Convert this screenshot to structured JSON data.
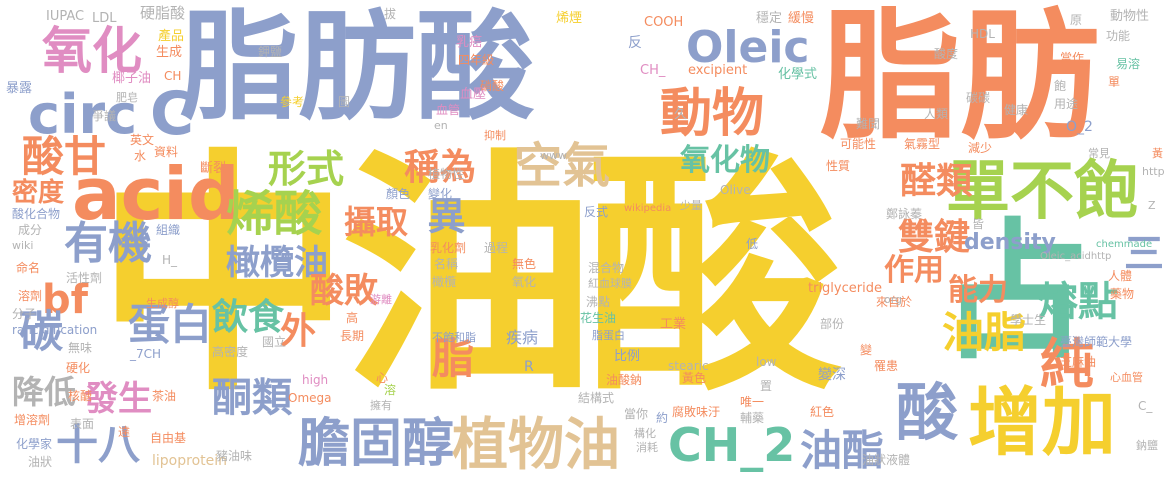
{
  "palette": {
    "yellow": "#f5cf2e",
    "blue": "#8d9fcb",
    "orange": "#f48c5f",
    "green": "#67c2a4",
    "pink": "#e08dc2",
    "lime": "#a6d24f",
    "tan": "#e2c394",
    "gray": "#b3b3b3"
  },
  "words": {
    "zhong_you_suan": "中油酸",
    "zhifang_suan": "脂肪酸",
    "zhifang": "脂肪",
    "zhan": "占",
    "acid": "acid",
    "yanghua": "氧化",
    "circ": "circ",
    "c": "C",
    "oleic": "Oleic",
    "dongwu": "動物",
    "danbubao": "單不飽",
    "zengjia": "增加",
    "suan": "酸",
    "dangu_chun": "膽固醇",
    "zhiwuyou": "植物油",
    "ch2": "CH_2",
    "youzhi": "油酯",
    "xi_suan": "烯酸",
    "xingshi": "形式",
    "kongqi": "空氣",
    "youji": "有機",
    "bf": "bf",
    "suangan": "酸甘",
    "midu": "密度",
    "tan_c": "碳",
    "jiangdi": "降低",
    "fasheng": "發生",
    "shiba": "十八",
    "tong_lei": "酮類",
    "danbai": "蛋白",
    "wai": "外",
    "yinshi": "飲食",
    "ganlanyou": "橄欖油",
    "sheqv": "攝取",
    "chengwei": "稱為",
    "yanghuawu": "氧化物",
    "quan_lei": "醛類",
    "shuangjian": "雙鍵",
    "density": "density",
    "zuoyong": "作用",
    "nengli": "能力",
    "yi": "異",
    "suanbai": "酸敗",
    "zhi": "脂",
    "youzhi2": "油脂",
    "rongdian": "熔點",
    "chun": "純",
    "san": "三",
    "yingzhi_suan": "硬脂酸",
    "iupac": "IUPAC",
    "ldl": "LDL",
    "ruan": "乳癌",
    "xiyan": "烯煙",
    "cooh": "COOH",
    "wending": "穩定",
    "huanman": "緩慢",
    "dongwuxing": "動物性",
    "gongneng": "功能",
    "yuan": "原",
    "sinianji": "四年級",
    "ch_": "CH_",
    "excipient": "excipient",
    "huaxueshi": "化學式",
    "chanpin": "產品",
    "shengcheng": "生成",
    "yezi_you": "椰子油",
    "feizao": "肥皂",
    "baolu": "暴露",
    "zhengyi": "爭議",
    "yingwen": "英文",
    "shui": "水",
    "ziliao": "資料",
    "duanliang": "斷裂",
    "jia_yan": "鉀鹽",
    "suandu": "酸度",
    "fan": "反",
    "xueya": "血壓",
    "xiaosuan": "硝酸",
    "xueguan": "血管",
    "en": "en",
    "yizhi": "抑制",
    "www": "www",
    "renlei": "人類",
    "jiankang": "健康",
    "nanwen": "難聞",
    "keneng": "可能性",
    "qiyang": "氣霧型",
    "jianshao": "減少",
    "yongtu": "用途",
    "o2": "O_2",
    "hdl": "HDL",
    "dangzuo": "當作",
    "yirong": "易溶",
    "changjian": "常見",
    "huang": "黃",
    "http": "http",
    "z": "Z",
    "zheng": "鄭詠蓁",
    "fanshi": "反式",
    "shaoliang": "少量",
    "olive": "Olive",
    "wikipedia": "wikipedia",
    "yanse": "顏色",
    "bianhua": "變化",
    "zhiwuxing": "植物性",
    "suanhua": "酸化合物",
    "chengfen": "成分",
    "zuzhi": "組織",
    "wiki": "wiki",
    "h_": "H_",
    "mingming": "命名",
    "huoxingji": "活性劑",
    "rongji": "溶劑",
    "youli": "游離",
    "gao": "高",
    "shengchengsuan": "生成醇",
    "fenzi": "分子",
    "rancidification": "rancidification",
    "_7ch": "_7CH",
    "wuwei": "無味",
    "gaomidu": "高密度",
    "guoli": "國立",
    "changqi": "長期",
    "liguo": "硬化",
    "hetang": "核醣",
    "xin": "心",
    "lipoprotein": "lipoprotein",
    "chayou": "茶油",
    "zengrongji": "增溶劑",
    "biaomian": "表面",
    "da": "達",
    "huaxuejia": "化學家",
    "zhuyouwei": "豬油味",
    "ziyouji": "自由基",
    "youzhuang": "油狀",
    "omega": "Omega",
    "yongyou": "擁有",
    "rong": "溶",
    "high": "high",
    "ruhuaji": "乳化劑",
    "mingcheng": "名稱",
    "ganlan": "橄欖",
    "guocheng": "過程",
    "wuse": "無色",
    "yanghua2": "氧化",
    "hunhewu": "混合物",
    "hongxueqiumo": "紅血球膜",
    "feidian": "沸點",
    "huashengyou": "花生油",
    "zhifangbai": "脂蛋白",
    "buhe_zhi": "不飽和脂",
    "jibing": "疾病",
    "r": "R",
    "bili": "比例",
    "gongye": "工業",
    "stearic": "stearic",
    "low": "low",
    "huangse": "黃色",
    "jiegoushi": "結構式",
    "youzhisuanna": "油酸鈉",
    "dangni": "當你",
    "yue": "約",
    "fubaiweizi": "腐敗味汙",
    "weiyi": "唯一",
    "gouhua": "構化",
    "xiaohao": "消耗",
    "fuyao": "輔藥",
    "gouhua2": "構化",
    "hongse": "紅色",
    "triglyceride": "triglyceride",
    "laizi": "來自於",
    "org": "org",
    "bufen": "部份",
    "bian": "變",
    "bianshen": "變深",
    "rhuan": "罹患",
    "youzhuangyeti": "油狀液體",
    "zhima_you": "芝麻油",
    "taiwan": "臺灣師範大學",
    "xueshisheng": "學士生",
    "renyi": "人體",
    "xinxueguan": "心血管",
    "yaowu": "藥物",
    "oleic_acid": "Oleic_acidhttp",
    "chemmade": "chemmade",
    "c_": "C_",
    "nayan": "鈉鹽",
    "qiu": "丘",
    "ba": "拔",
    "tan2": "碳碳",
    "jiu": "久",
    "tu": "圖",
    "cankao": "參考",
    "shan": "單",
    "zhi2": "皆",
    "di": "低",
    "zhi3": "置",
    "cankao2": "性質",
    "gou": "構體",
    "bao": "飽",
    "ch": "CH"
  }
}
